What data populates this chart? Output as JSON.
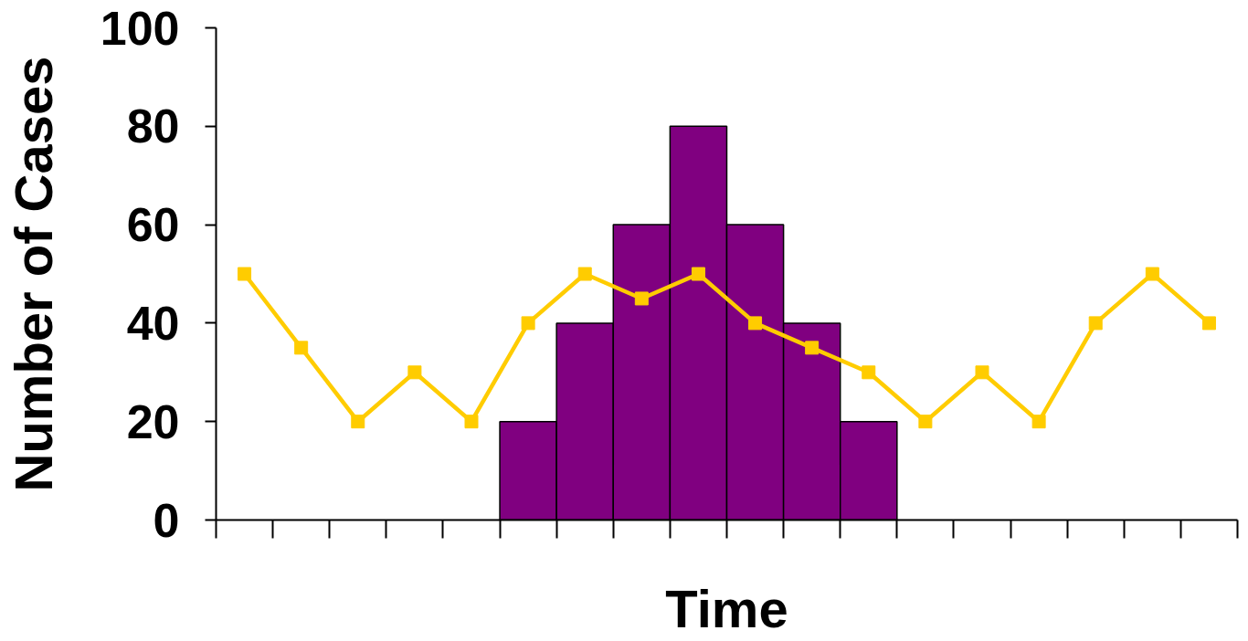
{
  "chart_data": {
    "type": "bar",
    "xlabel": "Time",
    "ylabel": "Number of Cases",
    "categories": [
      null,
      null,
      null,
      null,
      null,
      null,
      null,
      null,
      null,
      null,
      null,
      null,
      null,
      null,
      null,
      null,
      null,
      null
    ],
    "series": [
      {
        "color": "#800080",
        "values": [
          null,
          null,
          null,
          null,
          null,
          20,
          40,
          60,
          80,
          60,
          40,
          20,
          null,
          null,
          null,
          null,
          null,
          null
        ]
      },
      {
        "type": "line",
        "color": "#ffcc00",
        "marker": "square",
        "values": [
          50,
          35,
          20,
          30,
          20,
          40,
          50,
          45,
          50,
          40,
          35,
          30,
          20,
          30,
          20,
          40,
          50,
          40
        ]
      }
    ],
    "ylim": [
      0,
      100
    ],
    "yticks": [
      0,
      20,
      40,
      60,
      80,
      100
    ],
    "grid": false,
    "tick_labels": "y"
  }
}
